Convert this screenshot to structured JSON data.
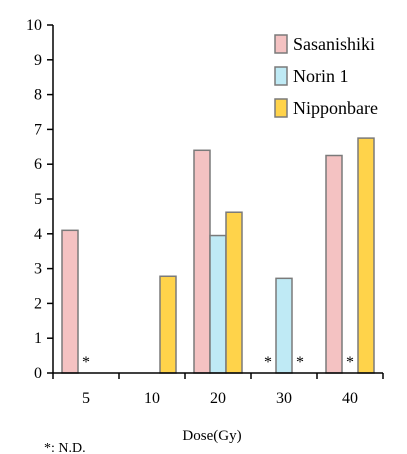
{
  "chart_data": {
    "type": "bar",
    "title": "",
    "xlabel": "Dose(Gy)",
    "ylabel": "",
    "ylim": [
      0,
      10
    ],
    "yticks": [
      "0",
      "1",
      "2",
      "3",
      "4",
      "5",
      "6",
      "7",
      "8",
      "9",
      "10"
    ],
    "categories": [
      "5",
      "10",
      "20",
      "30",
      "40"
    ],
    "series": [
      {
        "name": "Sasanishiki",
        "color": "#f4c2c2",
        "values": [
          4.1,
          null,
          6.4,
          null,
          6.25
        ]
      },
      {
        "name": "Norin 1",
        "color": "#bfeaf5",
        "values": [
          null,
          null,
          3.95,
          2.72,
          null
        ]
      },
      {
        "name": "Nipponbare",
        "color": "#ffd34a",
        "values": [
          null,
          2.78,
          4.62,
          null,
          6.75
        ]
      }
    ],
    "not_detected": [
      {
        "category": "5",
        "series": "Norin 1"
      },
      {
        "category": "30",
        "series": "Sasanishiki"
      },
      {
        "category": "30",
        "series": "Nipponbare"
      },
      {
        "category": "40",
        "series": "Norin 1"
      }
    ],
    "not_detected_symbol": "*",
    "legend_position": "top-right",
    "grid": false
  },
  "footnote": "*: N.D."
}
